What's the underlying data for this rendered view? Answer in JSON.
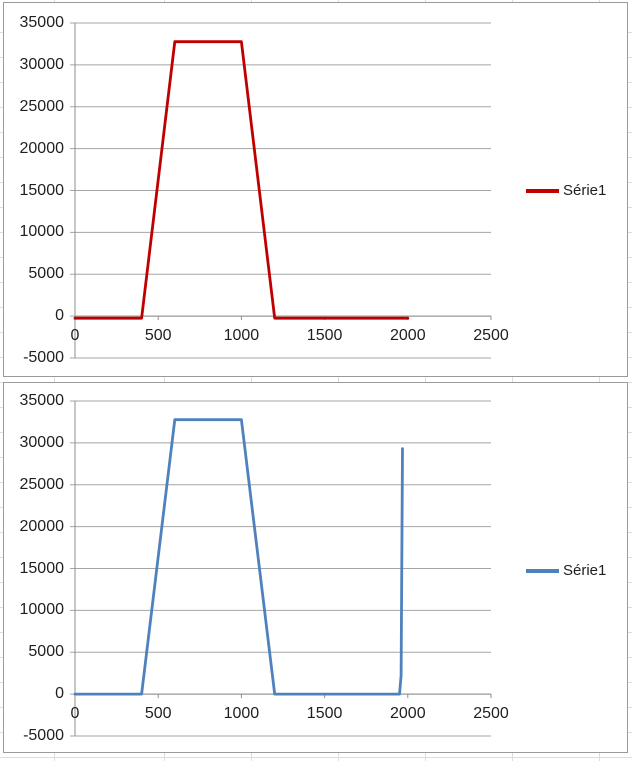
{
  "chart_data": [
    {
      "type": "line",
      "title": "",
      "legend": "Série1",
      "legend_position": "right",
      "grid": "horizontal-only",
      "xlim": [
        0,
        2500
      ],
      "ylim": [
        -5000,
        35000
      ],
      "x_ticks": [
        0,
        500,
        1000,
        1500,
        2000,
        2500
      ],
      "y_ticks": [
        35000,
        30000,
        25000,
        20000,
        15000,
        10000,
        5000,
        0,
        -5000
      ],
      "series": [
        {
          "name": "Série1",
          "color": "#C00000",
          "points": [
            [
              0,
              -250
            ],
            [
              400,
              -250
            ],
            [
              600,
              32767
            ],
            [
              1000,
              32767
            ],
            [
              1200,
              -250
            ],
            [
              2000,
              -250
            ]
          ]
        }
      ]
    },
    {
      "type": "line",
      "title": "",
      "legend": "Série1",
      "legend_position": "right",
      "grid": "horizontal-only",
      "xlim": [
        0,
        2500
      ],
      "ylim": [
        -5000,
        35000
      ],
      "x_ticks": [
        0,
        500,
        1000,
        1500,
        2000,
        2500
      ],
      "y_ticks": [
        35000,
        30000,
        25000,
        20000,
        15000,
        10000,
        5000,
        0,
        -5000
      ],
      "series": [
        {
          "name": "Série1",
          "color": "#4F81BD",
          "points": [
            [
              0,
              0
            ],
            [
              400,
              0
            ],
            [
              600,
              32767
            ],
            [
              1000,
              32767
            ],
            [
              1200,
              0
            ],
            [
              1950,
              0
            ],
            [
              1960,
              2200
            ],
            [
              1968,
              29300
            ]
          ]
        }
      ]
    }
  ],
  "colors": {
    "background": "#FFFFFF",
    "chart_border": "#9A9A9A",
    "gridline": "#A5A5A5",
    "axis": "#8F8F8F",
    "text": "#1F1F1F",
    "sheet_gridline": "#D8DDE6",
    "series_red": "#C00000",
    "series_blue": "#4F81BD"
  }
}
